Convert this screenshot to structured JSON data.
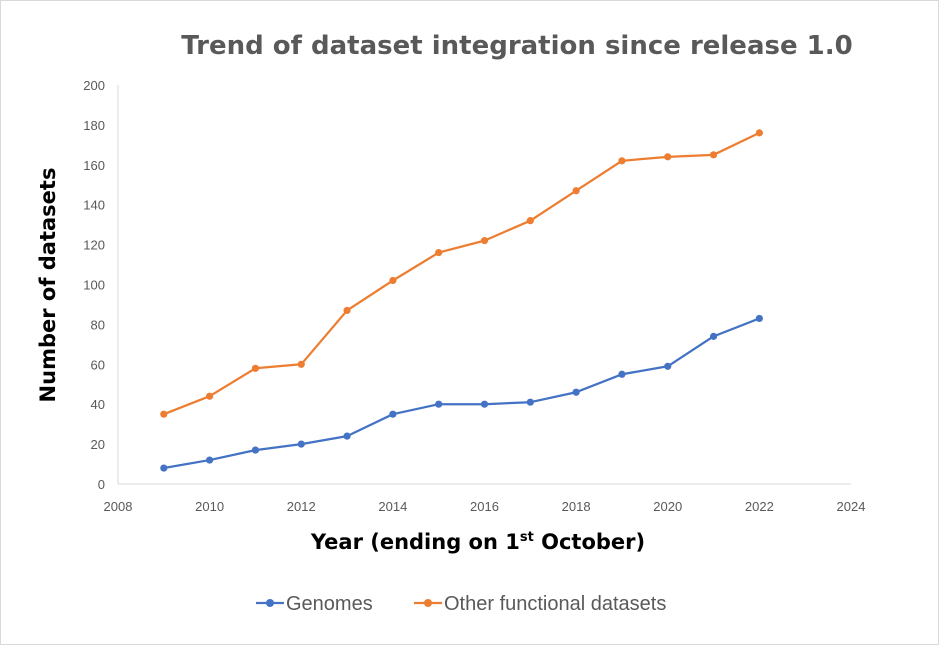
{
  "chart_data": {
    "type": "scatter",
    "title": "Trend of dataset integration since release 1.0",
    "xlabel": {
      "main": "Year (ending on 1",
      "sup": "st",
      "rest": " October)"
    },
    "ylabel": "Number of datasets",
    "xlim": [
      2008,
      2024
    ],
    "ylim": [
      0,
      200
    ],
    "x_ticks": [
      "2008",
      "2010",
      "2012",
      "2014",
      "2016",
      "2018",
      "2020",
      "2022",
      "2024"
    ],
    "y_ticks": [
      "0",
      "20",
      "40",
      "60",
      "80",
      "100",
      "120",
      "140",
      "160",
      "180",
      "200"
    ],
    "grid": false,
    "legend_position": "bottom",
    "series": [
      {
        "name": "Genomes",
        "color": "#4472c4",
        "x": [
          2009,
          2010,
          2011,
          2012,
          2013,
          2014,
          2015,
          2016,
          2017,
          2018,
          2019,
          2020,
          2021,
          2022
        ],
        "y": [
          8,
          12,
          17,
          20,
          24,
          35,
          40,
          40,
          41,
          46,
          55,
          59,
          74,
          83
        ]
      },
      {
        "name": "Other functional datasets",
        "color": "#ed7d31",
        "x": [
          2009,
          2010,
          2011,
          2012,
          2013,
          2014,
          2015,
          2016,
          2017,
          2018,
          2019,
          2020,
          2021,
          2022
        ],
        "y": [
          35,
          44,
          58,
          60,
          87,
          102,
          116,
          122,
          132,
          147,
          162,
          164,
          165,
          176
        ]
      }
    ]
  }
}
